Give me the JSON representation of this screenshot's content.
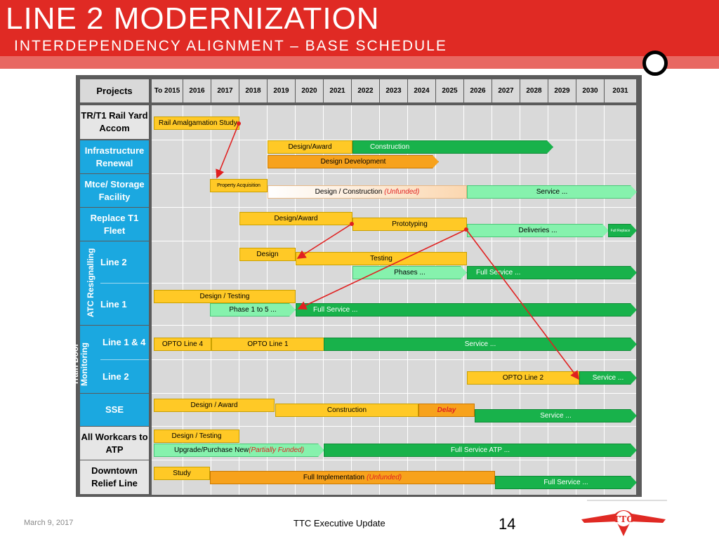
{
  "slide": {
    "title": "LINE 2 MODERNIZATION",
    "subtitle": "INTERDEPENDENCY ALIGNMENT – BASE SCHEDULE",
    "date": "March 9, 2017",
    "footer": "TTC Executive Update",
    "page": "14"
  },
  "colors": {
    "header_red": "#e02a24",
    "label_blue": "#1ba8e0",
    "bar_yellow": "#ffc926",
    "bar_orange": "#f7a21c",
    "bar_green": "#18b24b",
    "bar_lightgreen": "#86f2ad",
    "arrow_red": "#e02020"
  },
  "table": {
    "projects_header": "Projects",
    "years": [
      "To 2015",
      "2016",
      "2017",
      "2018",
      "2019",
      "2020",
      "2021",
      "2022",
      "2023",
      "2024",
      "2025",
      "2026",
      "2027",
      "2028",
      "2029",
      "2030",
      "2031"
    ],
    "rows": [
      {
        "label": "TR/T1 Rail Yard Accom"
      },
      {
        "label": "Infrastructure Renewal"
      },
      {
        "label": "Mtce/ Storage Facility"
      },
      {
        "label": "Replace T1 Fleet"
      },
      {
        "label": "Line 2"
      },
      {
        "label": "Line 1"
      },
      {
        "label": "Line 1 & 4"
      },
      {
        "label": "Line 2"
      },
      {
        "label": "SSE"
      },
      {
        "label": "All Workcars to ATP"
      },
      {
        "label": "Downtown Relief Line"
      }
    ],
    "groups": {
      "atc": "ATC Resignalling",
      "train_door": "Train Door Monitoring"
    }
  },
  "bars": {
    "rail_amalgamation": "Rail Amalgamation Study",
    "infra_design_award": "Design/Award",
    "infra_construction": "Construction",
    "infra_design_dev": "Design Development",
    "property_acq": "Property Acquisition",
    "mtce_design_construction": "Design / Construction",
    "mtce_unfunded": "(Unfunded)",
    "mtce_service": "Service ...",
    "t1_design_award": "Design/Award",
    "t1_prototyping": "Prototyping",
    "t1_deliveries": "Deliveries ...",
    "t1_full_replace": "Full Replace",
    "atc2_design": "Design",
    "atc2_testing": "Testing",
    "atc2_phases": "Phases ...",
    "atc2_full_service": "Full Service ...",
    "atc1_design_testing": "Design / Testing",
    "atc1_phase": "Phase 1 to 5 ...",
    "atc1_full_service": "Full Service ...",
    "td14_opto4": "OPTO Line 4",
    "td14_opto1": "OPTO Line 1",
    "td14_service": "Service ...",
    "td2_opto2": "OPTO Line 2",
    "td2_service": "Service ...",
    "sse_design_award": "Design / Award",
    "sse_construction": "Construction",
    "sse_delay": "Delay",
    "sse_service": "Service ...",
    "wc_design_testing": "Design / Testing",
    "wc_upgrade": "Upgrade/Purchase New",
    "wc_partial": "(Partially Funded)",
    "wc_full_service": "Full Service ATP ...",
    "drl_study": "Study",
    "drl_full_impl": "Full Implementation",
    "drl_unfunded": "(Unfunded)",
    "drl_full_service": "Full Service ..."
  }
}
